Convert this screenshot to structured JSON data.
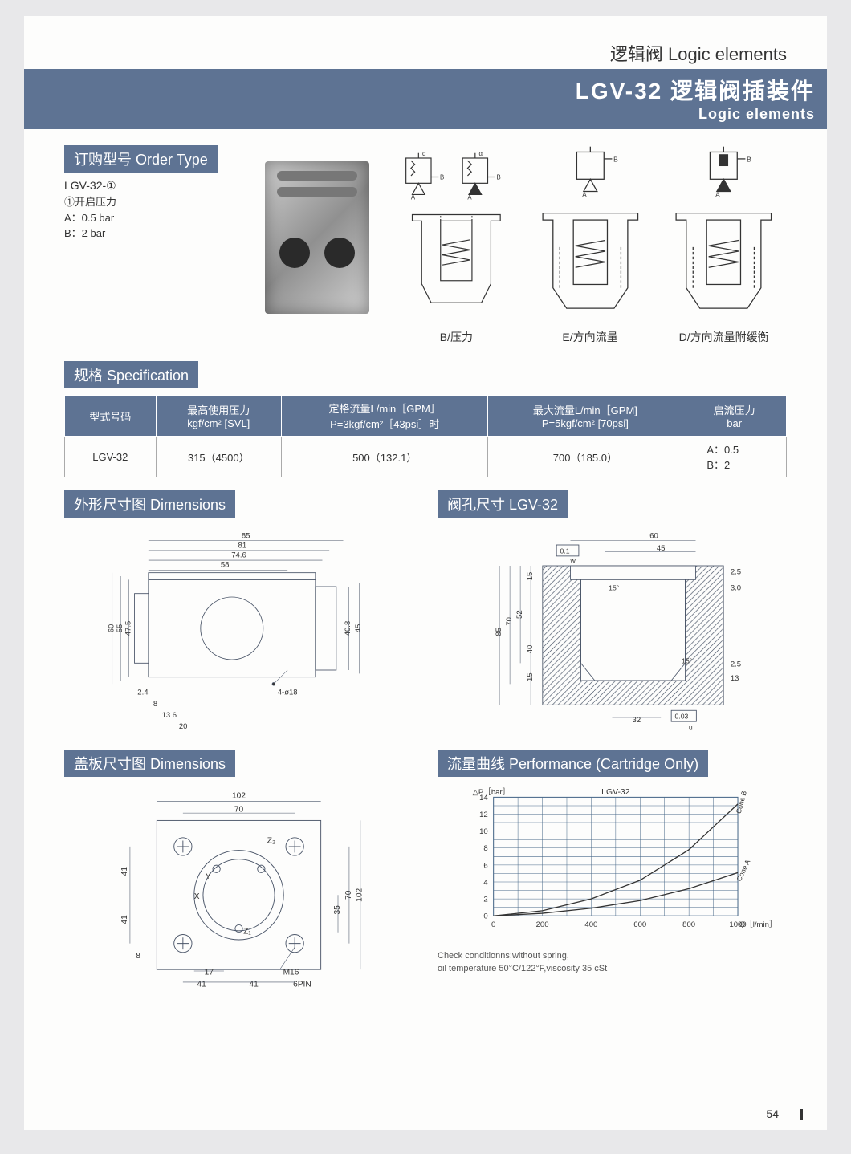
{
  "header": {
    "breadcrumb": "逻辑阀 Logic elements",
    "title": "LGV-32 逻辑阀插装件",
    "subtitle": "Logic elements"
  },
  "order": {
    "heading": "订购型号 Order Type",
    "code": "LGV-32-①",
    "note_line": "①开启压力",
    "opt_a": "A：0.5 bar",
    "opt_b": "B：2 bar"
  },
  "diagrams": {
    "c1": "B/压力",
    "c2": "E/方向流量",
    "c3": "D/方向流量附缓衡",
    "port_a": "A",
    "port_b": "B",
    "port_alpha": "α"
  },
  "spec": {
    "heading": "规格 Specification",
    "cols": {
      "c0": "型式号码",
      "c1_l1": "最高使用压力",
      "c1_l2": "kgf/cm² [SVL]",
      "c2_l1": "定格流量L/min［GPM］",
      "c2_l2": "P=3kgf/cm²［43psi］时",
      "c3_l1": "最大流量L/min［GPM]",
      "c3_l2": "P=5kgf/cm² [70psi]",
      "c4_l1": "启流压力",
      "c4_l2": "bar"
    },
    "row": {
      "model": "LGV-32",
      "pmax": "315（4500）",
      "rated": "500（132.1）",
      "max": "700（185.0）",
      "crack": "A：0.5\nB：2"
    }
  },
  "dims": {
    "heading": "外形尺寸图 Dimensions",
    "d85": "85",
    "d81": "81",
    "d746": "74.6",
    "d58": "58",
    "d60": "60",
    "d55": "55",
    "d475": "47.5",
    "d408": "40.8",
    "d45": "45",
    "d24": "2.4",
    "d8": "8",
    "d136": "13.6",
    "d20": "20",
    "d4o18": "4-ø18"
  },
  "bore": {
    "heading": "阀孔尺寸 LGV-32",
    "d60": "60",
    "d45": "45",
    "d85": "85",
    "d70": "70",
    "d52": "52",
    "d40": "40",
    "d15a": "15",
    "d15b": "15",
    "d15deg": "15°",
    "d32": "32",
    "d25a": "2.5",
    "d30": "3.0",
    "d25b": "2.5",
    "d13": "13",
    "tol1": "0.1",
    "tol2": "0.03",
    "w": "w",
    "u": "u"
  },
  "cover": {
    "heading": "盖板尺寸图 Dimensions",
    "d102": "102",
    "d70": "70",
    "d41": "41",
    "d35": "35",
    "d102b": "102",
    "d70b": "70",
    "d8": "8",
    "d17": "17",
    "dm16": "M16",
    "d6pin": "6PIN",
    "z1": "Z₁",
    "z2": "Z₂",
    "x": "X",
    "y": "Y"
  },
  "perf": {
    "heading": "流量曲线 Performance (Cartridge Only)",
    "title": "LGV-32",
    "ylab": "△P［bar］",
    "xlab": "Q［l/min］",
    "yticks": [
      "0",
      "2",
      "4",
      "6",
      "8",
      "10",
      "12",
      "14"
    ],
    "xticks": [
      "0",
      "200",
      "400",
      "600",
      "800",
      "1000"
    ],
    "curve_b": "Cone B",
    "curve_a": "Cone A",
    "note1": "Check conditionns:without spring,",
    "note2": "oil temperature 50°C/122°F,viscosity 35 cSt",
    "curves": {
      "a": [
        [
          0,
          0
        ],
        [
          200,
          0.3
        ],
        [
          400,
          0.9
        ],
        [
          600,
          1.8
        ],
        [
          800,
          3.2
        ],
        [
          1000,
          5.1
        ]
      ],
      "b": [
        [
          0,
          0
        ],
        [
          200,
          0.6
        ],
        [
          400,
          2.0
        ],
        [
          600,
          4.2
        ],
        [
          800,
          7.8
        ],
        [
          1000,
          13.2
        ]
      ]
    }
  },
  "chart_style": {
    "grid_color": "#4a6a8a",
    "line_color": "#333333",
    "bg": "#ffffff",
    "x_domain": [
      0,
      1000
    ],
    "y_domain": [
      0,
      14
    ]
  },
  "colors": {
    "band": "#5e7393",
    "page_bg": "#fdfdfc",
    "outer_bg": "#e8e8ea",
    "line": "#333333"
  },
  "page_number": "54"
}
